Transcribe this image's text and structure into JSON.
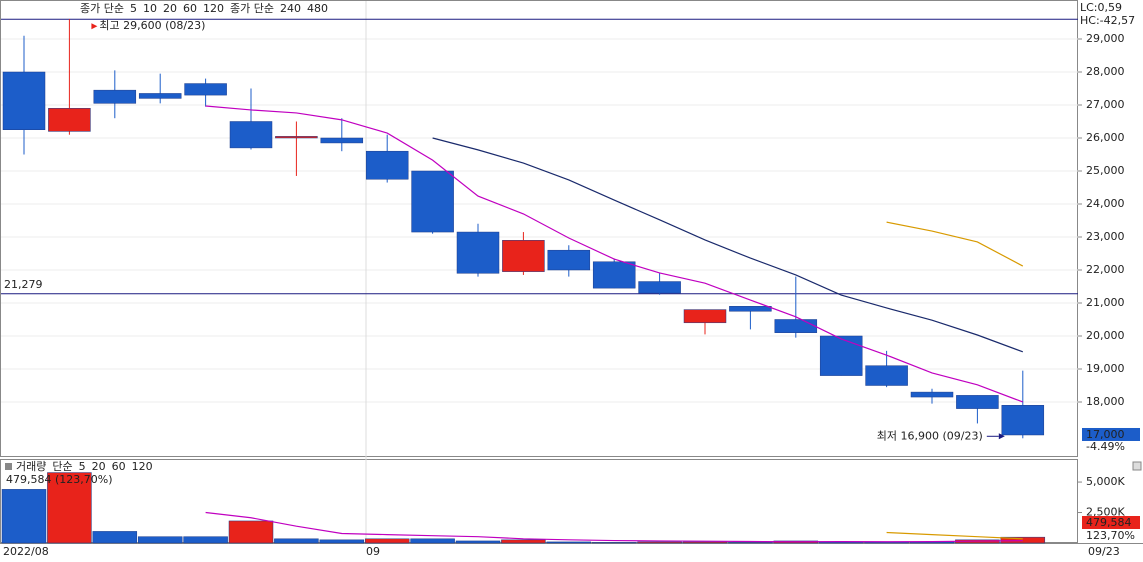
{
  "chart_data": [
    {
      "type": "candlestick",
      "legend": [
        {
          "text": "종가 단순",
          "color": "#c000c0"
        },
        {
          "text": "5",
          "color": "#c000c0"
        },
        {
          "text": "10",
          "color": "#000080"
        },
        {
          "text": "20",
          "color": "#d89a00"
        },
        {
          "text": "60",
          "color": "#008000"
        },
        {
          "text": "120",
          "color": "#808080"
        },
        {
          "text": "종가 단순",
          "color": "#00a0a0"
        },
        {
          "text": "240",
          "color": "#00a0a0"
        },
        {
          "text": "480",
          "color": "#000080"
        }
      ],
      "open": [
        28000,
        26200,
        27450,
        27350,
        27650,
        26500,
        26000,
        26000,
        25600,
        25000,
        23150,
        21950,
        22600,
        22250,
        21650,
        20400,
        20900,
        20500,
        20000,
        19100,
        18300,
        18200,
        17900
      ],
      "high": [
        29100,
        29600,
        28050,
        27950,
        27800,
        27500,
        26500,
        26600,
        26100,
        25000,
        23400,
        23150,
        22750,
        22350,
        21900,
        20800,
        20900,
        21800,
        20000,
        19550,
        18400,
        18200,
        18950
      ],
      "low": [
        25500,
        26100,
        26600,
        27050,
        26950,
        25650,
        24850,
        25600,
        24650,
        23100,
        21800,
        21850,
        21800,
        21450,
        21250,
        20050,
        20200,
        19950,
        18800,
        18450,
        17950,
        17350,
        16900
      ],
      "close": [
        26250,
        26900,
        27050,
        27200,
        27300,
        25700,
        26050,
        25850,
        24750,
        23150,
        21900,
        22900,
        22000,
        21450,
        21300,
        20800,
        20750,
        20100,
        18800,
        18500,
        18150,
        17800,
        17000
      ],
      "up_color": "#e8231b",
      "down_color": "#1c5dc9",
      "series": [
        {
          "color": "#c000c0",
          "values": [
            null,
            null,
            null,
            null,
            26970,
            26850,
            26760,
            26550,
            26150,
            25330,
            24240,
            23700,
            22970,
            22330,
            21910,
            21600,
            21090,
            20580,
            19910,
            19420,
            18880,
            18520,
            18000
          ]
        },
        {
          "color": "#1a2a6c",
          "values": [
            null,
            null,
            null,
            null,
            null,
            null,
            null,
            null,
            null,
            26000,
            25640,
            25240,
            24730,
            24120,
            23520,
            22910,
            22360,
            21850,
            21240,
            20850,
            20480,
            20030,
            19520
          ]
        },
        {
          "color": "#d89a00",
          "values": [
            null,
            null,
            null,
            null,
            null,
            null,
            null,
            null,
            null,
            null,
            null,
            null,
            null,
            null,
            null,
            null,
            null,
            null,
            null,
            23450,
            23180,
            22850,
            22120
          ]
        }
      ],
      "hlines": [
        {
          "value": 29600
        },
        {
          "value": 21279,
          "label": "21,279"
        }
      ],
      "ylim": [
        16333,
        30182
      ],
      "yticks": [
        {
          "value": 18000,
          "label": "18,000"
        },
        {
          "value": 19000,
          "label": "19,000"
        },
        {
          "value": 20000,
          "label": "20,000"
        },
        {
          "value": 21000,
          "label": "21,000"
        },
        {
          "value": 22000,
          "label": "22,000"
        },
        {
          "value": 23000,
          "label": "23,000"
        },
        {
          "value": 24000,
          "label": "24,000"
        },
        {
          "value": 25000,
          "label": "25,000"
        },
        {
          "value": 26000,
          "label": "26,000"
        },
        {
          "value": 27000,
          "label": "27,000"
        },
        {
          "value": 28000,
          "label": "28,000"
        },
        {
          "value": 29000,
          "label": "29,000"
        }
      ],
      "max_label": "최고 29,600 (08/23)",
      "min_label": "최저 16,900 (09/23)",
      "lc": "LC:0,59",
      "hc": "HC:-42,57",
      "last_price": {
        "value": 17000,
        "label": "17,000"
      },
      "change": "-4.49%",
      "grid": true
    },
    {
      "type": "bar",
      "legend": [
        {
          "text": "거래량",
          "color": "#008080"
        },
        {
          "text": "단순",
          "color": "#c000c0"
        },
        {
          "text": "5",
          "color": "#c000c0"
        },
        {
          "text": "20",
          "color": "#d89a00"
        },
        {
          "text": "60",
          "color": "#008000"
        },
        {
          "text": "120",
          "color": "#808080"
        }
      ],
      "info": "479,584 (123,70%)",
      "categories": [
        "2022/08",
        null,
        null,
        null,
        null,
        null,
        null,
        null,
        "09",
        null,
        null,
        null,
        null,
        null,
        null,
        null,
        null,
        null,
        null,
        null,
        null,
        null,
        null
      ],
      "values": [
        4400000,
        5780000,
        950000,
        520000,
        520000,
        1810000,
        345000,
        260000,
        345000,
        345000,
        170000,
        260000,
        90000,
        40000,
        90000,
        90000,
        40000,
        170000,
        90000,
        90000,
        90000,
        260000,
        479584
      ],
      "colors": [
        "#1c5dc9",
        "#e8231b",
        "#1c5dc9",
        "#1c5dc9",
        "#1c5dc9",
        "#e8231b",
        "#1c5dc9",
        "#1c5dc9",
        "#e8231b",
        "#1c5dc9",
        "#1c5dc9",
        "#e8231b",
        "#1c5dc9",
        "#1c5dc9",
        "#e8231b",
        "#e8231b",
        "#1c5dc9",
        "#e8231b",
        "#1c5dc9",
        "#1c5dc9",
        "#1c5dc9",
        "#e8231b",
        "#e8231b"
      ],
      "series": [
        {
          "color": "#c000c0",
          "values": [
            null,
            null,
            null,
            null,
            2500000,
            2070000,
            1380000,
            780000,
            690000,
            600000,
            520000,
            345000,
            260000,
            200000,
            170000,
            150000,
            120000,
            100000,
            110000,
            100000,
            110000,
            160000,
            190000
          ]
        },
        {
          "color": "#d89a00",
          "values": [
            null,
            null,
            null,
            null,
            null,
            null,
            null,
            null,
            null,
            null,
            null,
            null,
            null,
            null,
            null,
            null,
            null,
            null,
            null,
            860000,
            690000,
            520000,
            345000
          ]
        }
      ],
      "value_labels_last": "479,584",
      "ratio": "123,70%",
      "ylim": [
        0,
        6810000
      ],
      "yticks": [
        {
          "value": 2500000,
          "label": "2,500K"
        },
        {
          "value": 5000000,
          "label": "5,000K"
        }
      ],
      "date_cursor": "09/23"
    }
  ]
}
